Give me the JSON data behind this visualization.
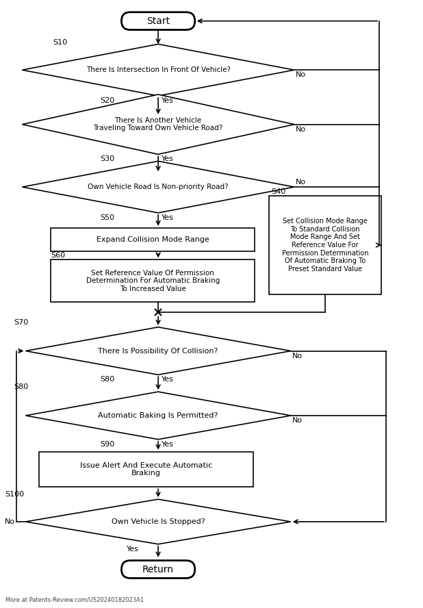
{
  "bg_color": "#ffffff",
  "line_color": "#000000",
  "text_color": "#000000",
  "fig_width": 6.18,
  "fig_height": 8.88,
  "watermark": "More at Patents-Review.com/US20240182023A1",
  "start_text": "Start",
  "return_text": "Return",
  "d1_text": "There Is Intersection In Front Of Vehicle?",
  "d2_text": "There Is Another Vehicle\nTraveling Toward Own Vehicle Road?",
  "d3_text": "Own Vehicle Road Is Non-priority Road?",
  "d4_text": "There Is Possibility Of Collision?",
  "d5_text": "Automatic Baking Is Permitted?",
  "d6_text": "Own Vehicle Is Stopped?",
  "s40_text": "Set Collision Mode Range\nTo Standard Collision\nMode Range And Set\nReference Value For\nPermission Determination\nOf Automatic Braking To\nPreset Standard Value",
  "s50_text": "Expand Collision Mode Range",
  "s60_text": "Set Reference Value Of Permission\nDetermination For Automatic Braking\nTo Increased Value",
  "s90_text": "Issue Alert And Execute Automatic\nBraking"
}
